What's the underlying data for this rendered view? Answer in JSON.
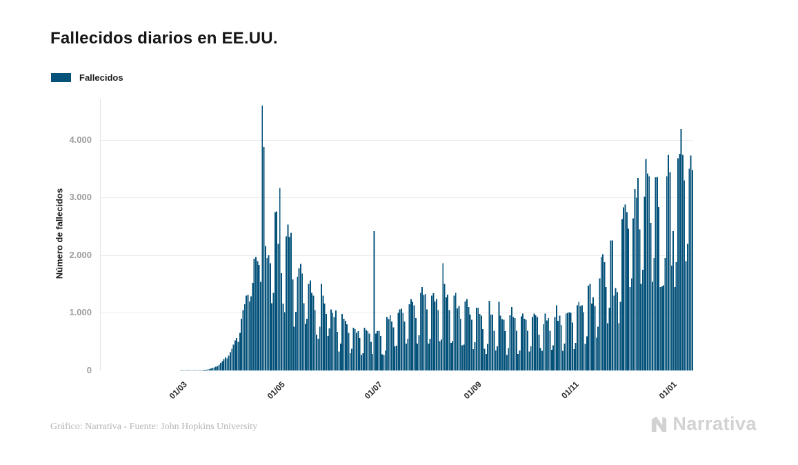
{
  "header": {
    "title": "Fallecidos diarios en EE.UU."
  },
  "legend": {
    "label": "Fallecidos",
    "color": "#04527a"
  },
  "footer": {
    "credit": "Gráfico: Narrativa - Fuente: John Hopkins University",
    "brand": "Narrativa"
  },
  "chart_data": {
    "type": "bar",
    "title": "Fallecidos diarios en EE.UU.",
    "xlabel": "",
    "ylabel": "Número de fallecidos",
    "ylim": [
      0,
      4718
    ],
    "grid": true,
    "legend_position": "top-left",
    "bar_color": "#04527a",
    "grid_color": "#ececec",
    "axis_line_color": "#e3e3e3",
    "baseline_color": "#d6d6d6",
    "start_date": "2020-01-10",
    "end_date": "2021-01-14",
    "yticks": [
      {
        "v": 0,
        "label": "0"
      },
      {
        "v": 1000,
        "label": "1.000"
      },
      {
        "v": 2000,
        "label": "2.000"
      },
      {
        "v": 3000,
        "label": "3.000"
      },
      {
        "v": 4000,
        "label": "4.000"
      }
    ],
    "xticks": [
      {
        "i": 51,
        "label": "01/03"
      },
      {
        "i": 112,
        "label": "01/05"
      },
      {
        "i": 173,
        "label": "01/07"
      },
      {
        "i": 235,
        "label": "01/09"
      },
      {
        "i": 296,
        "label": "01/11"
      },
      {
        "i": 357,
        "label": "01/01"
      }
    ],
    "series": [
      {
        "name": "Fallecidos",
        "values": [
          0,
          0,
          0,
          0,
          0,
          0,
          0,
          0,
          0,
          0,
          0,
          0,
          0,
          0,
          0,
          0,
          0,
          0,
          0,
          0,
          0,
          0,
          0,
          0,
          0,
          0,
          0,
          0,
          0,
          0,
          0,
          0,
          0,
          0,
          0,
          0,
          0,
          0,
          0,
          0,
          0,
          0,
          0,
          0,
          0,
          0,
          0,
          0,
          0,
          0,
          1,
          1,
          1,
          2,
          3,
          2,
          3,
          4,
          3,
          4,
          6,
          7,
          6,
          8,
          10,
          12,
          15,
          20,
          25,
          35,
          45,
          55,
          65,
          80,
          100,
          130,
          160,
          200,
          230,
          210,
          260,
          320,
          380,
          450,
          520,
          560,
          500,
          650,
          900,
          1050,
          1150,
          1300,
          1310,
          1200,
          1290,
          1520,
          1940,
          1970,
          1900,
          1830,
          1540,
          4600,
          3880,
          2160,
          1950,
          2000,
          1860,
          1170,
          1350,
          2750,
          2760,
          2200,
          3170,
          1690,
          1160,
          1010,
          2330,
          2530,
          2320,
          2390,
          1580,
          760,
          1020,
          1630,
          1770,
          1850,
          1680,
          1170,
          810,
          900,
          1500,
          1560,
          1350,
          1300,
          1050,
          620,
          550,
          760,
          1500,
          1300,
          1160,
          980,
          600,
          730,
          1060,
          1000,
          930,
          1040,
          670,
          330,
          470,
          980,
          900,
          860,
          800,
          650,
          300,
          380,
          740,
          720,
          650,
          680,
          560,
          270,
          300,
          740,
          700,
          680,
          640,
          500,
          290,
          2420,
          640,
          680,
          690,
          600,
          280,
          270,
          350,
          930,
          890,
          960,
          850,
          750,
          420,
          430,
          1000,
          1060,
          1070,
          1000,
          850,
          470,
          550,
          1150,
          1240,
          1190,
          1130,
          910,
          470,
          610,
          1350,
          1450,
          1310,
          1330,
          1060,
          470,
          550,
          1300,
          1340,
          1200,
          1240,
          1050,
          510,
          540,
          1860,
          1500,
          1270,
          1320,
          1050,
          480,
          510,
          1300,
          1350,
          1080,
          1120,
          900,
          440,
          450,
          1200,
          1240,
          1100,
          970,
          880,
          370,
          490,
          1090,
          1090,
          980,
          950,
          720,
          380,
          290,
          460,
          1210,
          970,
          970,
          690,
          350,
          420,
          1190,
          950,
          890,
          880,
          680,
          270,
          390,
          960,
          1100,
          930,
          910,
          690,
          290,
          350,
          940,
          990,
          900,
          880,
          690,
          330,
          420,
          930,
          990,
          960,
          930,
          620,
          390,
          340,
          800,
          990,
          870,
          910,
          690,
          360,
          440,
          930,
          1130,
          860,
          950,
          790,
          340,
          470,
          990,
          1000,
          1010,
          1000,
          830,
          370,
          480,
          1130,
          1190,
          1120,
          1130,
          1010,
          460,
          590,
          1470,
          1500,
          1160,
          1270,
          1120,
          570,
          760,
          1600,
          1970,
          2020,
          1880,
          1450,
          820,
          1090,
          2260,
          2260,
          1300,
          1430,
          1360,
          820,
          1190,
          2630,
          2830,
          2880,
          2750,
          2460,
          1450,
          1600,
          2640,
          3150,
          3000,
          3340,
          2450,
          1500,
          1750,
          3020,
          3670,
          3420,
          3370,
          2560,
          1540,
          1950,
          3350,
          3360,
          2840,
          1450,
          1460,
          1480,
          1950,
          3370,
          3740,
          3440,
          1820,
          2420,
          1450,
          1880,
          3680,
          3760,
          4190,
          3740,
          3300,
          1900,
          2200,
          3500,
          3730,
          3480
        ]
      }
    ]
  }
}
